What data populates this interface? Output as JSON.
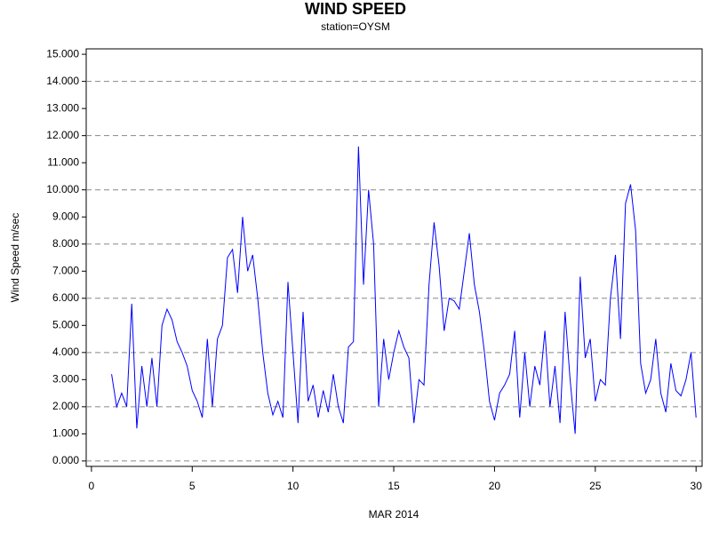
{
  "chart_data": {
    "type": "line",
    "title": "WIND SPEED",
    "subtitle": "station=OYSM",
    "x_label": "MAR 2014",
    "y_label": "Wind Speed m/sec",
    "grid": true,
    "xlim": [
      -0.26,
      30.3
    ],
    "ylim": [
      -0.2,
      15.2
    ],
    "xticks": [
      0,
      5,
      10,
      15,
      20,
      25,
      30
    ],
    "yticks": [
      {
        "value": 0,
        "label": "0.000"
      },
      {
        "value": 1,
        "label": "1.000"
      },
      {
        "value": 2,
        "label": "2.000"
      },
      {
        "value": 3,
        "label": "3.000"
      },
      {
        "value": 4,
        "label": "4.000"
      },
      {
        "value": 5,
        "label": "5.000"
      },
      {
        "value": 6,
        "label": "6.000"
      },
      {
        "value": 7,
        "label": "7.000"
      },
      {
        "value": 8,
        "label": "8.000"
      },
      {
        "value": 9,
        "label": "9.000"
      },
      {
        "value": 10,
        "label": "10.000"
      },
      {
        "value": 11,
        "label": "11.000"
      },
      {
        "value": 12,
        "label": "12.000"
      },
      {
        "value": 13,
        "label": "13.000"
      },
      {
        "value": 14,
        "label": "14.000"
      },
      {
        "value": 15,
        "label": "15.000"
      }
    ],
    "x": [
      1,
      1.25,
      1.5,
      1.75,
      2,
      2.25,
      2.5,
      2.75,
      3,
      3.25,
      3.5,
      3.75,
      4,
      4.25,
      4.5,
      4.75,
      5,
      5.25,
      5.5,
      5.75,
      6,
      6.25,
      6.5,
      6.75,
      7,
      7.25,
      7.5,
      7.75,
      8,
      8.25,
      8.5,
      8.75,
      9,
      9.25,
      9.5,
      9.75,
      10,
      10.25,
      10.5,
      10.75,
      11,
      11.25,
      11.5,
      11.75,
      12,
      12.25,
      12.5,
      12.75,
      13,
      13.25,
      13.5,
      13.75,
      14,
      14.25,
      14.5,
      14.75,
      15,
      15.25,
      15.5,
      15.75,
      16,
      16.25,
      16.5,
      16.75,
      17,
      17.25,
      17.5,
      17.75,
      18,
      18.25,
      18.5,
      18.75,
      19,
      19.25,
      19.5,
      19.75,
      20,
      20.25,
      20.5,
      20.75,
      21,
      21.25,
      21.5,
      21.75,
      22,
      22.25,
      22.5,
      22.75,
      23,
      23.25,
      23.5,
      23.75,
      24,
      24.25,
      24.5,
      24.75,
      25,
      25.25,
      25.5,
      25.75,
      26,
      26.25,
      26.5,
      26.75,
      27,
      27.25,
      27.5,
      27.75,
      28,
      28.25,
      28.5,
      28.75,
      29,
      29.25,
      29.5,
      29.75,
      30
    ],
    "series": [
      {
        "color": "#0000ff",
        "values": [
          3.2,
          2.0,
          2.5,
          2.0,
          5.8,
          1.2,
          3.5,
          2.0,
          3.8,
          2.0,
          5.0,
          5.6,
          5.2,
          4.4,
          4.0,
          3.5,
          2.6,
          2.2,
          1.6,
          4.5,
          2.0,
          4.5,
          5.0,
          7.5,
          7.8,
          6.2,
          9.0,
          7.0,
          7.6,
          6.0,
          4.0,
          2.5,
          1.7,
          2.2,
          1.6,
          6.6,
          4.0,
          1.4,
          5.5,
          2.2,
          2.8,
          1.6,
          2.6,
          1.8,
          3.2,
          2.0,
          1.4,
          4.2,
          4.4,
          11.6,
          6.5,
          10.0,
          8.0,
          2.0,
          4.5,
          3.0,
          4.0,
          4.8,
          4.2,
          3.8,
          1.4,
          3.0,
          2.8,
          6.5,
          8.8,
          7.2,
          4.8,
          6.0,
          5.9,
          5.6,
          7.0,
          8.4,
          6.5,
          5.5,
          4.0,
          2.2,
          1.5,
          2.5,
          2.8,
          3.2,
          4.8,
          1.6,
          4.0,
          2.0,
          3.5,
          2.8,
          4.8,
          2.0,
          3.5,
          1.4,
          5.5,
          3.0,
          1.0,
          6.8,
          3.8,
          4.5,
          2.2,
          3.0,
          2.8,
          6.0,
          7.6,
          4.5,
          9.5,
          10.2,
          8.5,
          3.6,
          2.5,
          3.0,
          4.5,
          2.5,
          1.8,
          3.6,
          2.6,
          2.4,
          3.0,
          4.0,
          1.6
        ]
      }
    ]
  }
}
